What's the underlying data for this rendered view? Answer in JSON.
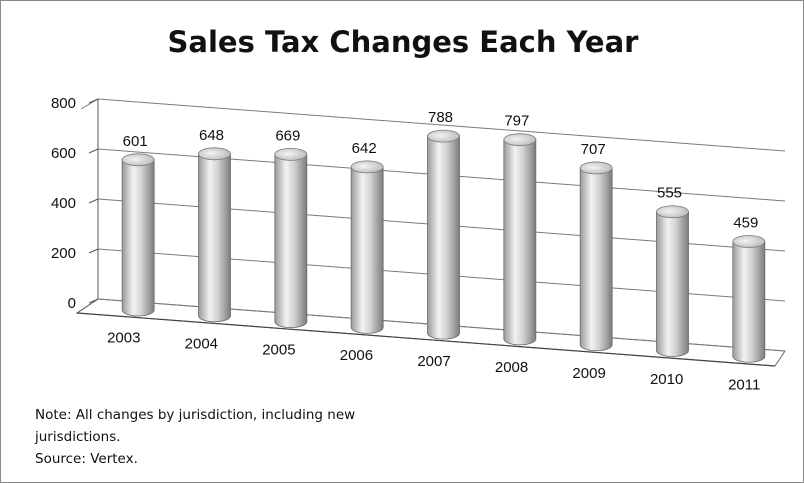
{
  "chart_data": {
    "type": "bar",
    "title": "Sales Tax Changes Each Year",
    "categories": [
      "2003",
      "2004",
      "2005",
      "2006",
      "2007",
      "2008",
      "2009",
      "2010",
      "2011"
    ],
    "values": [
      601,
      648,
      669,
      642,
      788,
      797,
      707,
      555,
      459
    ],
    "yticks": [
      "0",
      "200",
      "400",
      "600",
      "800"
    ],
    "ylim": [
      0,
      800
    ],
    "grid": true,
    "legend": "none",
    "style": "3d-cylinder"
  },
  "notes": [
    "Note: All changes by jurisdiction, including new",
    "jurisdictions.",
    "Source: Vertex."
  ]
}
